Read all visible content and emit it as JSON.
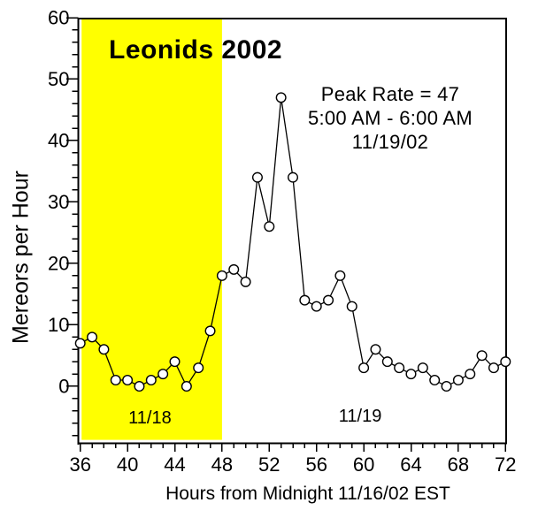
{
  "chart_data": {
    "type": "line",
    "title": "Leonids 2002",
    "xlabel": "Hours from Midnight 11/16/02 EST",
    "ylabel": "Mereors per Hour",
    "xlim": [
      36,
      72
    ],
    "ylim": [
      -9.3,
      60
    ],
    "x_major_ticks": [
      36,
      40,
      44,
      48,
      52,
      56,
      60,
      64,
      68,
      72
    ],
    "x_minor_step": 1,
    "y_major_ticks": [
      0,
      10,
      20,
      30,
      40,
      50,
      60
    ],
    "y_minor_step": 2,
    "grid": false,
    "legend": "none",
    "marker": "open-circle",
    "marker_fill": "#FFFFFF",
    "line_color": "#000000",
    "axis_color": "#000000",
    "background_color": "#FFFFFF",
    "shaded_region": {
      "x_start": 36,
      "x_end": 48,
      "color": "#FFFF00"
    },
    "x": [
      36,
      37,
      38,
      39,
      40,
      41,
      42,
      43,
      44,
      45,
      46,
      47,
      48,
      49,
      50,
      51,
      52,
      53,
      54,
      55,
      56,
      57,
      58,
      59,
      60,
      61,
      62,
      63,
      64,
      65,
      66,
      67,
      68,
      69,
      70,
      71,
      72
    ],
    "values": [
      7,
      8,
      6,
      1,
      1,
      0,
      1,
      2,
      4,
      0,
      3,
      9,
      18,
      19,
      17,
      34,
      26,
      47,
      34,
      14,
      13,
      14,
      18,
      13,
      3,
      6,
      4,
      3,
      2,
      3,
      1,
      0,
      1,
      2,
      5,
      3,
      4
    ],
    "peak": {
      "x": 53,
      "value": 47
    },
    "annotations": [
      "Peak Rate = 47",
      "5:00 AM - 6:00 AM",
      "11/19/02"
    ],
    "day_labels": [
      {
        "label": "11/18",
        "x": 41.9,
        "y": -5.2
      },
      {
        "label": "11/19",
        "x": 59.7,
        "y": -4.9
      }
    ]
  }
}
